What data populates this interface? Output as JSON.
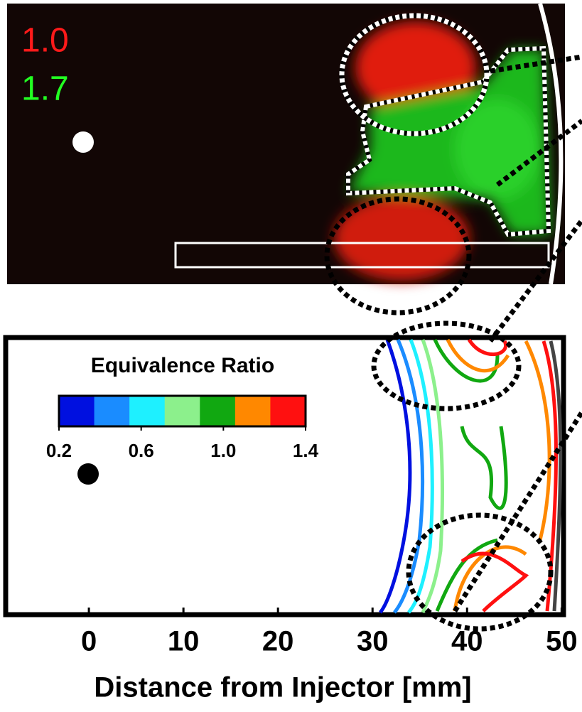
{
  "image_annotations": [
    {
      "text": "1.0",
      "color": "#ff1a1a"
    },
    {
      "text": "1.7",
      "color": "#22ff22"
    }
  ],
  "chart_data": {
    "type": "contour",
    "xlabel": "Distance from Injector [mm]",
    "xlim": [
      -8.8,
      50.2
    ],
    "xticks": [
      0,
      10,
      20,
      30,
      40,
      50
    ],
    "colorbar": {
      "title": "Equivalence Ratio",
      "colors": [
        "#0010e0",
        "#1a8cff",
        "#1ef0ff",
        "#8cf08c",
        "#11a811",
        "#ff8800",
        "#ff1010"
      ],
      "lim": [
        0.2,
        1.4
      ],
      "ticks": [
        0.2,
        0.6,
        {
          "value": 1.0,
          "label": "1.0"
        },
        1.4
      ]
    }
  }
}
